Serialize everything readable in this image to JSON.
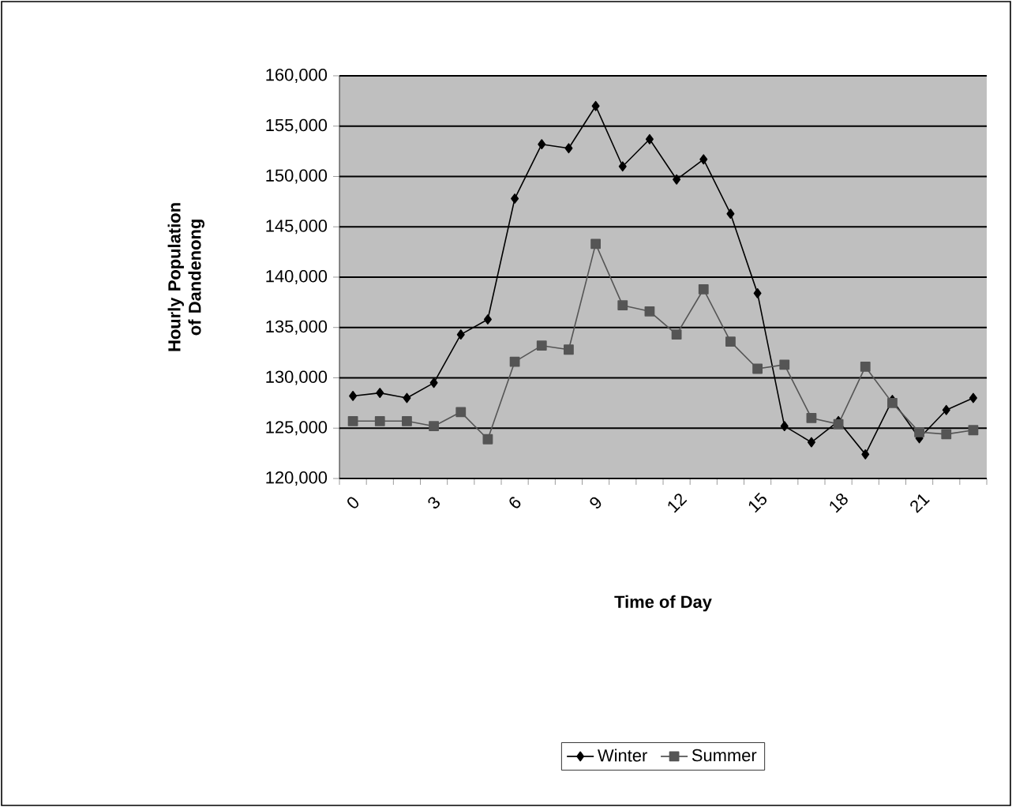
{
  "chart_data": {
    "type": "line",
    "xlabel": "Time of Day",
    "ylabel": "Hourly Population of Dandenong",
    "categories": [
      "0",
      null,
      null,
      "3",
      null,
      null,
      "6",
      null,
      null,
      "9",
      null,
      null,
      "12",
      null,
      null,
      "15",
      null,
      null,
      "18",
      null,
      null,
      "21",
      null,
      null
    ],
    "series": [
      {
        "name": "Winter",
        "color": "#000000",
        "marker": "diamond",
        "values": [
          128200,
          128500,
          128000,
          129500,
          134300,
          135800,
          147800,
          153200,
          152800,
          157000,
          151000,
          153700,
          149700,
          151700,
          146300,
          138400,
          125200,
          123600,
          125700,
          122400,
          127800,
          124000,
          126800,
          128000
        ]
      },
      {
        "name": "Summer",
        "color": "#555555",
        "marker": "square",
        "values": [
          125700,
          125700,
          125700,
          125200,
          126600,
          123900,
          131600,
          133200,
          132800,
          143300,
          137200,
          136600,
          134300,
          138800,
          133600,
          130900,
          131300,
          126000,
          125400,
          131100,
          127500,
          124600,
          124400,
          124800
        ]
      }
    ],
    "ylim": [
      120000,
      160000
    ],
    "yticks": [
      {
        "value": 120000,
        "label": "120,000"
      },
      {
        "value": 125000,
        "label": "125,000"
      },
      {
        "value": 130000,
        "label": "130,000"
      },
      {
        "value": 135000,
        "label": "135,000"
      },
      {
        "value": 140000,
        "label": "140,000"
      },
      {
        "value": 145000,
        "label": "145,000"
      },
      {
        "value": 150000,
        "label": "150,000"
      },
      {
        "value": 155000,
        "label": "155,000"
      },
      {
        "value": 160000,
        "label": "160,000"
      }
    ],
    "grid": "y",
    "legend": "bottom",
    "line_style": "solid"
  }
}
